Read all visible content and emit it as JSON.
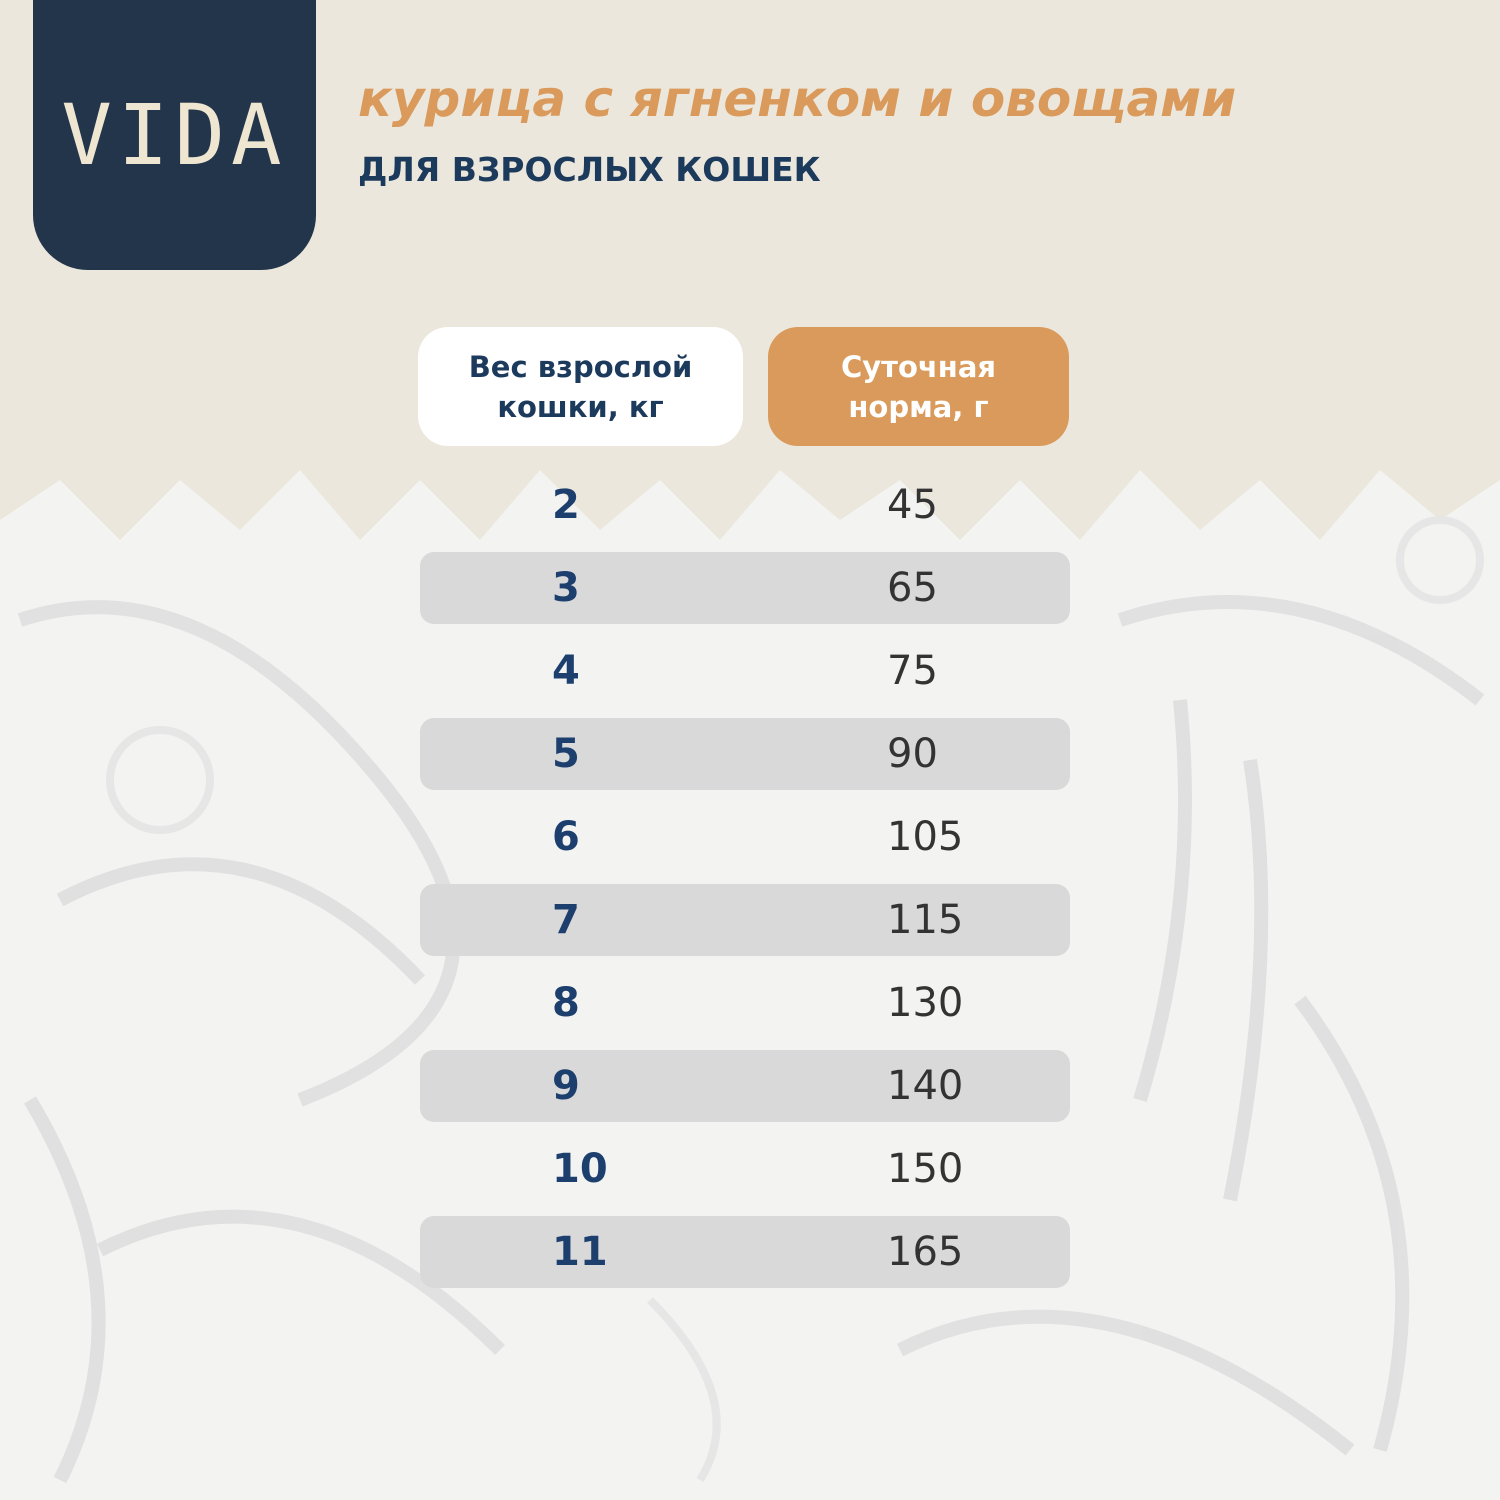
{
  "logo": "VIDA",
  "header": {
    "title": "курица с ягненком и овощами",
    "subtitle": "ДЛЯ ВЗРОСЛЫХ КОШЕК"
  },
  "table": {
    "columns": [
      "Вес взрослой кошки, кг",
      "Суточная норма, г"
    ],
    "rows": [
      [
        "2",
        "45"
      ],
      [
        "3",
        "65"
      ],
      [
        "4",
        "75"
      ],
      [
        "5",
        "90"
      ],
      [
        "6",
        "105"
      ],
      [
        "7",
        "115"
      ],
      [
        "8",
        "130"
      ],
      [
        "9",
        "140"
      ],
      [
        "10",
        "150"
      ],
      [
        "11",
        "165"
      ]
    ]
  }
}
